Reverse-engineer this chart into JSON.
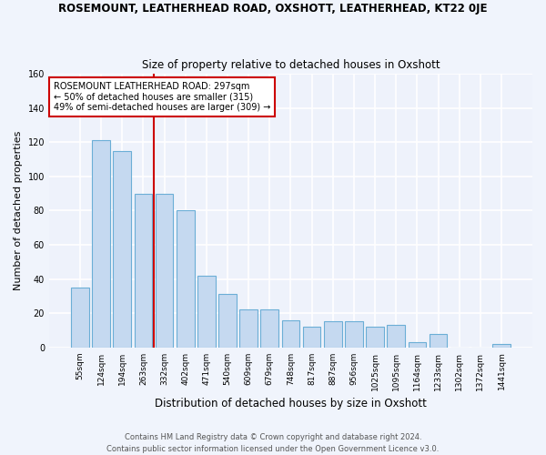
{
  "title": "ROSEMOUNT, LEATHERHEAD ROAD, OXSHOTT, LEATHERHEAD, KT22 0JE",
  "subtitle": "Size of property relative to detached houses in Oxshott",
  "xlabel": "Distribution of detached houses by size in Oxshott",
  "ylabel": "Number of detached properties",
  "categories": [
    "55sqm",
    "124sqm",
    "194sqm",
    "263sqm",
    "332sqm",
    "402sqm",
    "471sqm",
    "540sqm",
    "609sqm",
    "679sqm",
    "748sqm",
    "817sqm",
    "887sqm",
    "956sqm",
    "1025sqm",
    "1095sqm",
    "1164sqm",
    "1233sqm",
    "1302sqm",
    "1372sqm",
    "1441sqm"
  ],
  "values": [
    35,
    121,
    115,
    90,
    90,
    80,
    42,
    31,
    22,
    22,
    16,
    12,
    15,
    15,
    12,
    13,
    3,
    8,
    0,
    0,
    2
  ],
  "bar_color": "#c5d9f0",
  "bar_edge_color": "#6baed6",
  "background_color": "#eef2fb",
  "grid_color": "#ffffff",
  "vline_x": 3.5,
  "vline_color": "#cc0000",
  "annotation_text": "ROSEMOUNT LEATHERHEAD ROAD: 297sqm\n← 50% of detached houses are smaller (315)\n49% of semi-detached houses are larger (309) →",
  "annotation_box_color": "#ffffff",
  "annotation_box_edge": "#cc0000",
  "footnote": "Contains HM Land Registry data © Crown copyright and database right 2024.\nContains public sector information licensed under the Open Government Licence v3.0.",
  "ylim": [
    0,
    160
  ],
  "title_fontsize": 8.5,
  "subtitle_fontsize": 8.5
}
